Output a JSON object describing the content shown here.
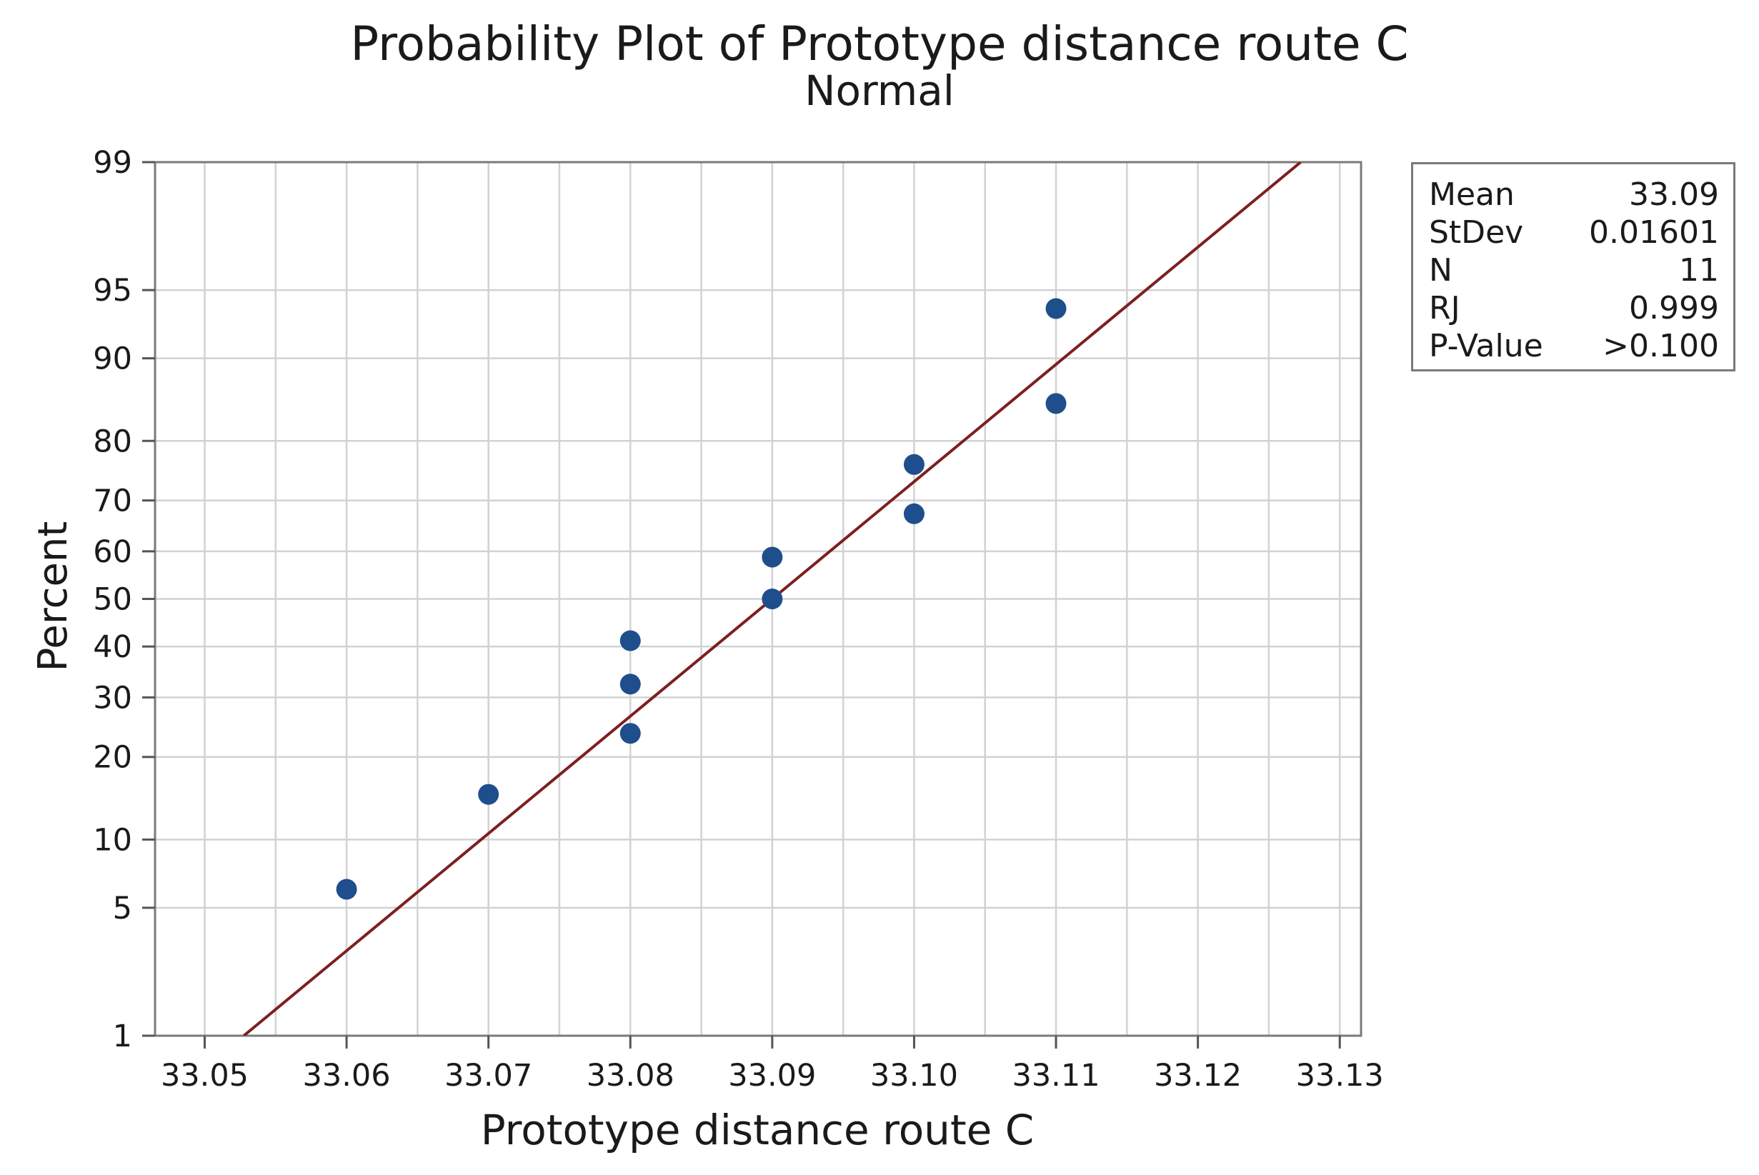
{
  "chart_data": {
    "type": "scatter",
    "title": "Probability Plot of Prototype distance route C",
    "subtitle": "Normal",
    "xlabel": "Prototype distance route C",
    "ylabel": "Percent",
    "xlim": [
      33.0465,
      33.1315
    ],
    "x_ticks": [
      {
        "value": 33.05,
        "label": "33.05"
      },
      {
        "value": 33.06,
        "label": "33.06"
      },
      {
        "value": 33.07,
        "label": "33.07"
      },
      {
        "value": 33.08,
        "label": "33.08"
      },
      {
        "value": 33.09,
        "label": "33.09"
      },
      {
        "value": 33.1,
        "label": "33.10"
      },
      {
        "value": 33.11,
        "label": "33.11"
      },
      {
        "value": 33.12,
        "label": "33.12"
      },
      {
        "value": 33.13,
        "label": "33.13"
      }
    ],
    "y_scale": "normal-probability",
    "ylim": [
      1,
      99
    ],
    "y_ticks": [
      1,
      5,
      10,
      20,
      30,
      40,
      50,
      60,
      70,
      80,
      90,
      95,
      99
    ],
    "grid": true,
    "points": [
      {
        "x": 33.06,
        "y": 6.1
      },
      {
        "x": 33.07,
        "y": 14.9
      },
      {
        "x": 33.08,
        "y": 23.7
      },
      {
        "x": 33.08,
        "y": 32.5
      },
      {
        "x": 33.08,
        "y": 41.2
      },
      {
        "x": 33.09,
        "y": 50.0
      },
      {
        "x": 33.09,
        "y": 58.8
      },
      {
        "x": 33.1,
        "y": 67.5
      },
      {
        "x": 33.1,
        "y": 76.3
      },
      {
        "x": 33.11,
        "y": 85.1
      },
      {
        "x": 33.11,
        "y": 93.9
      }
    ],
    "fit_line": {
      "mean": 33.09,
      "stdev": 0.01601
    },
    "colors": {
      "points": "#1f4e8c",
      "fit_line": "#7e1f1f",
      "grid": "#d2d2d2",
      "frame": "#7a7a7a"
    },
    "legend_position": "top-right",
    "stats": [
      {
        "label": "Mean",
        "value": "33.09"
      },
      {
        "label": "StDev",
        "value": "0.01601"
      },
      {
        "label": "N",
        "value": "11"
      },
      {
        "label": "RJ",
        "value": "0.999"
      },
      {
        "label": "P-Value",
        "value": ">0.100"
      }
    ]
  }
}
